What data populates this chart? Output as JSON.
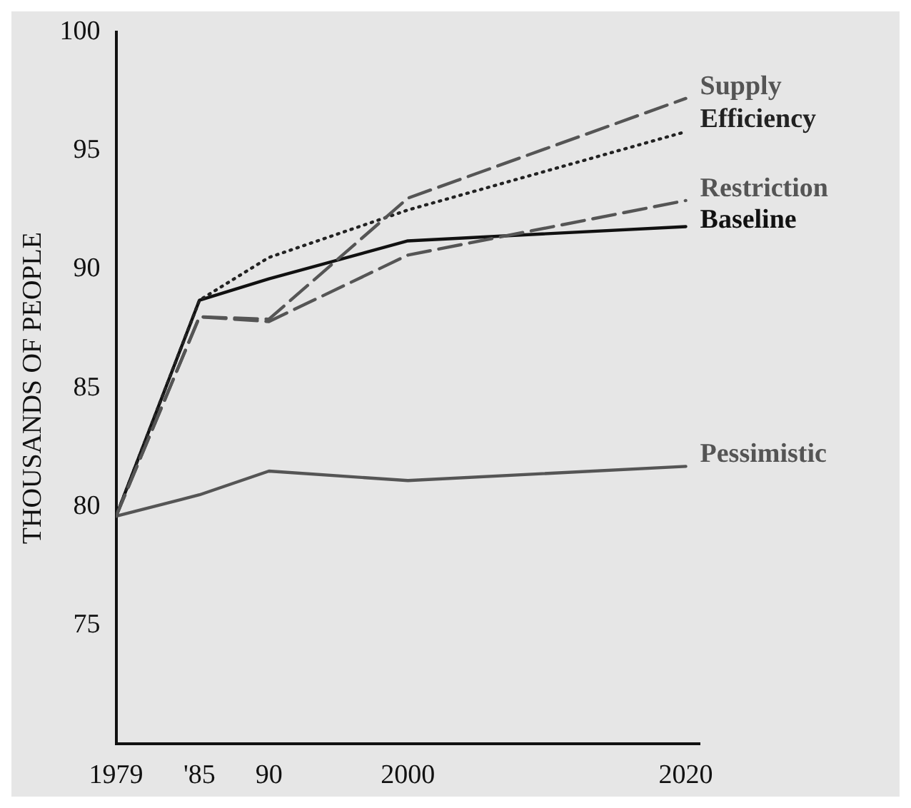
{
  "chart_data": {
    "type": "line",
    "ylabel": "THOUSANDS OF PEOPLE",
    "x": [
      1979,
      1985,
      1990,
      2000,
      2020
    ],
    "xlim": [
      1979,
      2021
    ],
    "ylim": [
      70,
      100
    ],
    "xticks": [
      1979,
      {
        "value": 1985,
        "label": "'85"
      },
      {
        "value": 1990,
        "label": "90"
      },
      2000,
      2020
    ],
    "yticks": [
      75,
      80,
      85,
      90,
      95,
      100
    ],
    "grid": false,
    "legend": false,
    "marker": "none",
    "series": [
      {
        "name": "Supply",
        "color": "#555555",
        "line_style": "dashed",
        "values": [
          79.6,
          88.0,
          87.9,
          93.0,
          97.2
        ]
      },
      {
        "name": "Efficiency",
        "color": "#222222",
        "line_style": "dotted",
        "values": [
          79.6,
          88.7,
          90.5,
          92.5,
          95.8
        ]
      },
      {
        "name": "Restriction",
        "color": "#555555",
        "line_style": "dashed",
        "values": [
          79.6,
          88.0,
          87.8,
          90.6,
          92.9
        ]
      },
      {
        "name": "Baseline",
        "color": "#111111",
        "line_style": "solid",
        "values": [
          79.6,
          88.7,
          89.6,
          91.2,
          91.8
        ]
      },
      {
        "name": "Pessimistic",
        "color": "#555555",
        "line_style": "solid",
        "values": [
          79.6,
          80.5,
          81.5,
          81.1,
          81.7
        ]
      }
    ]
  }
}
